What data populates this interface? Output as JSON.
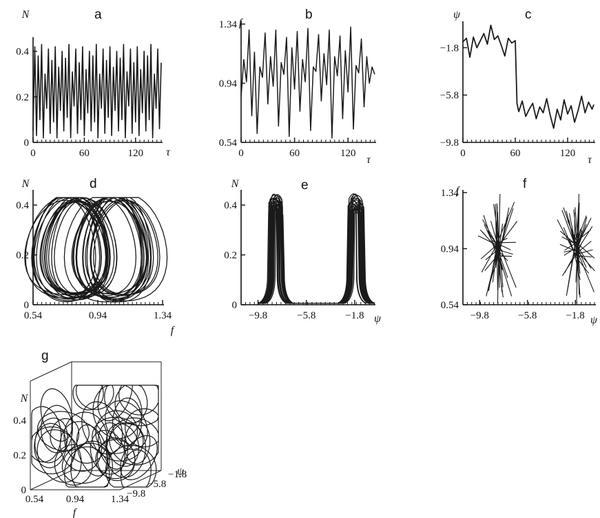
{
  "chart_data": [
    {
      "panel": "a",
      "type": "line",
      "xlabel": "τ",
      "ylabel": "N",
      "xlim": [
        0,
        150
      ],
      "ylim": [
        0,
        0.45
      ],
      "xticks": [
        "0",
        "60",
        "120"
      ],
      "yticks": [
        "0",
        "0.2",
        "0.4"
      ],
      "series": [
        {
          "x": [
            0,
            2,
            4,
            6,
            8,
            10,
            12,
            14,
            16,
            18,
            20,
            22,
            24,
            26,
            28,
            30,
            32,
            34,
            36,
            38,
            40,
            42,
            44,
            46,
            48,
            50,
            52,
            54,
            56,
            58,
            60,
            62,
            64,
            66,
            68,
            70,
            72,
            74,
            76,
            78,
            80,
            82,
            84,
            86,
            88,
            90,
            92,
            94,
            96,
            98,
            100,
            102,
            104,
            106,
            108,
            110,
            112,
            114,
            116,
            118,
            120,
            122,
            124,
            126,
            128,
            130,
            132,
            134,
            136,
            138,
            140,
            142,
            144,
            146,
            148,
            150
          ],
          "values": [
            0.05,
            0.42,
            0.03,
            0.38,
            0.1,
            0.43,
            0.02,
            0.3,
            0.15,
            0.41,
            0.04,
            0.36,
            0.09,
            0.42,
            0.02,
            0.33,
            0.14,
            0.4,
            0.05,
            0.37,
            0.11,
            0.43,
            0.02,
            0.31,
            0.16,
            0.41,
            0.04,
            0.35,
            0.1,
            0.42,
            0.03,
            0.32,
            0.13,
            0.4,
            0.05,
            0.38,
            0.09,
            0.43,
            0.02,
            0.3,
            0.15,
            0.41,
            0.04,
            0.36,
            0.11,
            0.42,
            0.03,
            0.33,
            0.14,
            0.4,
            0.05,
            0.37,
            0.1,
            0.43,
            0.02,
            0.31,
            0.16,
            0.41,
            0.04,
            0.35,
            0.09,
            0.42,
            0.03,
            0.32,
            0.13,
            0.4,
            0.05,
            0.38,
            0.1,
            0.43,
            0.02,
            0.3,
            0.15,
            0.41,
            0.06,
            0.35
          ]
        }
      ]
    },
    {
      "panel": "b",
      "type": "line",
      "xlabel": "τ",
      "ylabel": "f",
      "xlim": [
        0,
        150
      ],
      "ylim": [
        0.54,
        1.34
      ],
      "xticks": [
        "0",
        "60",
        "120"
      ],
      "yticks": [
        "0.54",
        "0.94",
        "1.34"
      ],
      "series": [
        {
          "x": [
            0,
            3,
            6,
            9,
            12,
            15,
            18,
            21,
            24,
            27,
            30,
            33,
            36,
            39,
            42,
            45,
            48,
            51,
            54,
            57,
            60,
            63,
            66,
            69,
            72,
            75,
            78,
            81,
            84,
            87,
            90,
            93,
            96,
            99,
            102,
            105,
            108,
            111,
            114,
            117,
            120,
            123,
            126,
            129,
            132,
            135,
            138,
            141,
            144,
            147,
            150
          ],
          "values": [
            0.85,
            1.1,
            0.95,
            1.3,
            0.72,
            1.15,
            0.6,
            1.05,
            0.98,
            1.28,
            0.8,
            1.12,
            0.92,
            1.3,
            0.65,
            1.08,
            1.0,
            1.25,
            0.58,
            1.18,
            0.9,
            1.29,
            0.75,
            1.1,
            0.95,
            1.31,
            0.62,
            1.05,
            1.02,
            1.27,
            0.82,
            1.14,
            0.93,
            1.3,
            0.57,
            1.12,
            0.99,
            1.26,
            0.7,
            1.16,
            0.88,
            1.32,
            0.63,
            1.06,
            1.01,
            1.24,
            0.78,
            1.12,
            0.94,
            1.05,
            1.0
          ]
        }
      ]
    },
    {
      "panel": "c",
      "type": "line",
      "xlabel": "τ",
      "ylabel": "ψ",
      "xlim": [
        0,
        150
      ],
      "ylim": [
        -9.8,
        0.2
      ],
      "xticks": [
        "0",
        "60",
        "120"
      ],
      "yticks": [
        "−1.8",
        "−5.8",
        "−9.8"
      ],
      "series": [
        {
          "x": [
            0,
            4,
            8,
            12,
            16,
            20,
            24,
            28,
            32,
            36,
            40,
            44,
            48,
            52,
            56,
            60,
            62,
            64,
            68,
            72,
            76,
            80,
            84,
            88,
            92,
            96,
            100,
            104,
            108,
            112,
            116,
            120,
            124,
            128,
            132,
            136,
            140,
            144,
            148,
            150
          ],
          "values": [
            -1.3,
            -1.0,
            -2.6,
            -0.9,
            -1.8,
            -1.2,
            -0.6,
            -1.5,
            0.1,
            -1.1,
            -0.8,
            -1.6,
            -2.5,
            -1.0,
            -1.4,
            -1.2,
            -6.5,
            -7.2,
            -6.3,
            -7.6,
            -7.0,
            -6.5,
            -7.8,
            -6.8,
            -7.3,
            -6.1,
            -7.5,
            -8.6,
            -7.0,
            -7.9,
            -6.2,
            -7.4,
            -6.7,
            -8.1,
            -7.1,
            -5.9,
            -7.3,
            -6.4,
            -7.0,
            -6.6
          ]
        }
      ]
    },
    {
      "panel": "d",
      "type": "line",
      "xlabel": "f",
      "ylabel": "N",
      "xlim": [
        0.54,
        1.34
      ],
      "ylim": [
        0,
        0.45
      ],
      "xticks": [
        "0.54",
        "0.94",
        "1.34"
      ],
      "yticks": [
        "0",
        "0.2",
        "0.4"
      ]
    },
    {
      "panel": "e",
      "type": "line",
      "xlabel": "ψ",
      "ylabel": "N",
      "xlim": [
        -11.2,
        -0.2
      ],
      "ylim": [
        0,
        0.45
      ],
      "xticks": [
        "−9.8",
        "−5.8",
        "−1.8"
      ],
      "yticks": [
        "0",
        "0.2",
        "0.4"
      ]
    },
    {
      "panel": "f",
      "type": "line",
      "xlabel": "ψ",
      "ylabel": "f",
      "xlim": [
        -11.2,
        -0.2
      ],
      "ylim": [
        0.54,
        1.34
      ],
      "xticks": [
        "−9.8",
        "−5.8",
        "−1.8"
      ],
      "yticks": [
        "0.54",
        "0.94",
        "1.34"
      ]
    },
    {
      "panel": "g",
      "type": "line",
      "xlabel": "f",
      "ylabel": "N",
      "zlabel": "ψ",
      "xticks": [
        "0.54",
        "0.94",
        "1.34"
      ],
      "yticks": [
        "0",
        "0.2",
        "0.4"
      ],
      "zticks": [
        "−9.8",
        "−5.8",
        "−1.8"
      ]
    }
  ]
}
